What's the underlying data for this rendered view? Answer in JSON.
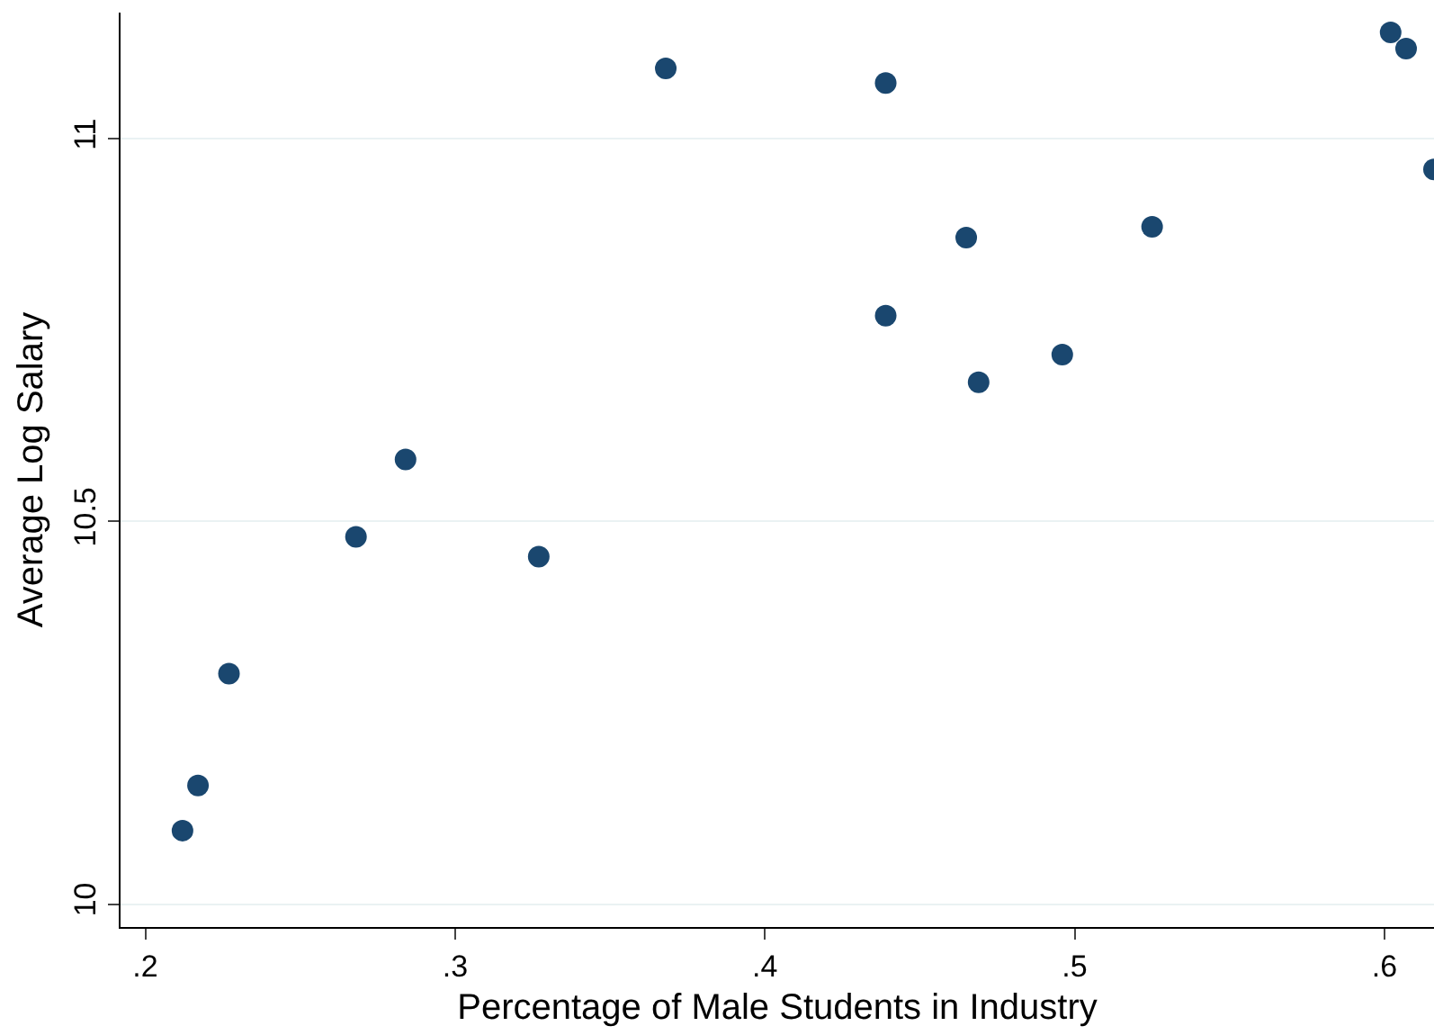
{
  "chart_data": {
    "type": "scatter",
    "xlabel": "Percentage of Male Students in Industry",
    "ylabel": "Average Log Salary",
    "x": [
      0.212,
      0.217,
      0.227,
      0.268,
      0.284,
      0.327,
      0.368,
      0.439,
      0.439,
      0.465,
      0.469,
      0.496,
      0.525,
      0.602,
      0.607,
      0.616
    ],
    "values": [
      10.096,
      10.155,
      10.301,
      10.48,
      10.581,
      10.454,
      11.092,
      11.073,
      10.769,
      10.871,
      10.682,
      10.718,
      10.885,
      11.139,
      11.118,
      10.96
    ],
    "color": "#1a476f",
    "marker": "circle",
    "grid": "y",
    "xlim": [
      0.192,
      0.616
    ],
    "xticks": [
      {
        "value": 0.2,
        "label": ".2"
      },
      {
        "value": 0.3,
        "label": ".3"
      },
      {
        "value": 0.4,
        "label": ".4"
      },
      {
        "value": 0.5,
        "label": ".5"
      },
      {
        "value": 0.6,
        "label": ".6"
      }
    ],
    "ylim": [
      9.97,
      11.165
    ],
    "yticks": [
      10,
      10.5,
      11
    ]
  }
}
